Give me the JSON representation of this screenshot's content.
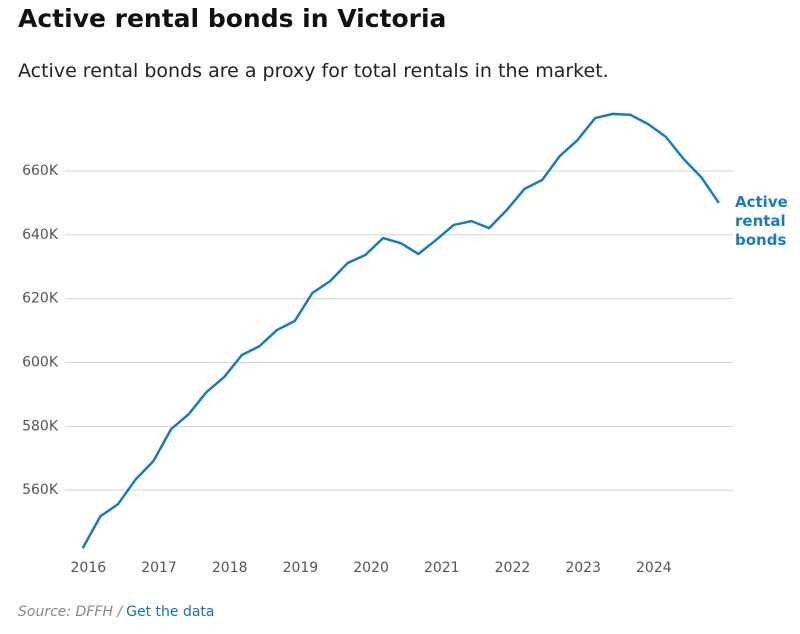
{
  "chart_data": {
    "type": "line",
    "title": "Active rental bonds in Victoria",
    "subtitle": "Active rental bonds are a proxy for total rentals in the market.",
    "x": [
      2015.92,
      2016.17,
      2016.42,
      2016.67,
      2016.92,
      2017.17,
      2017.42,
      2017.67,
      2017.92,
      2018.17,
      2018.42,
      2018.67,
      2018.92,
      2019.17,
      2019.42,
      2019.67,
      2019.92,
      2020.17,
      2020.42,
      2020.67,
      2020.92,
      2021.17,
      2021.42,
      2021.67,
      2021.92,
      2022.17,
      2022.42,
      2022.67,
      2022.92,
      2023.17,
      2023.42,
      2023.67,
      2023.92,
      2024.17,
      2024.42,
      2024.67,
      2024.92
    ],
    "series": [
      {
        "name": "Active rental bonds",
        "color": "#1a7bbf",
        "values": [
          541.8,
          551.8,
          555.6,
          563.4,
          569.1,
          579.1,
          583.8,
          590.7,
          595.4,
          602.3,
          605.1,
          610.2,
          613.0,
          621.8,
          625.5,
          631.2,
          633.7,
          639.0,
          637.4,
          634.0,
          638.4,
          643.1,
          644.3,
          642.1,
          647.8,
          654.4,
          657.2,
          664.7,
          669.7,
          676.6,
          677.9,
          677.6,
          674.7,
          670.7,
          663.8,
          658.1,
          650.0
        ]
      }
    ],
    "xlim": [
      2015.67,
      2025.12
    ],
    "xticks": [
      2016,
      2017,
      2018,
      2019,
      2020,
      2021,
      2022,
      2023,
      2024
    ],
    "ylim": [
      540,
      681
    ],
    "yticks": [
      {
        "value": 560,
        "label": "560K"
      },
      {
        "value": 580,
        "label": "580K"
      },
      {
        "value": 600,
        "label": "600K"
      },
      {
        "value": 620,
        "label": "620K"
      },
      {
        "value": 640,
        "label": "640K"
      },
      {
        "value": 660,
        "label": "660K"
      }
    ],
    "grid": true,
    "source": "Source: DFFH /",
    "link": "Get the data"
  }
}
